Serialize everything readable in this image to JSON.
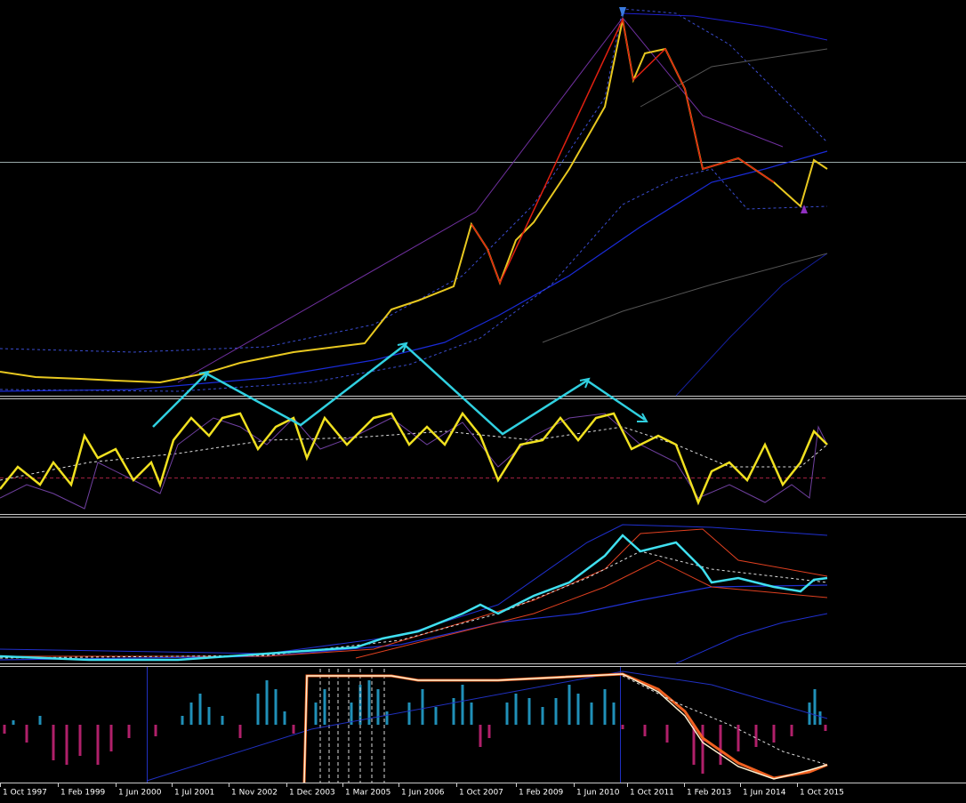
{
  "x_axis_labels": [
    "1 Oct 1997",
    "1 Feb 1999",
    "1 Jun 2000",
    "1 Jul 2001",
    "1 Nov 2002",
    "1 Dec 2003",
    "1 Mar 2005",
    "1 Jun 2006",
    "1 Oct 2007",
    "1 Feb 2009",
    "1 Jun 2010",
    "1 Oct 2011",
    "1 Feb 2013",
    "1 Jun 2014",
    "1 Oct 2015"
  ]
}
